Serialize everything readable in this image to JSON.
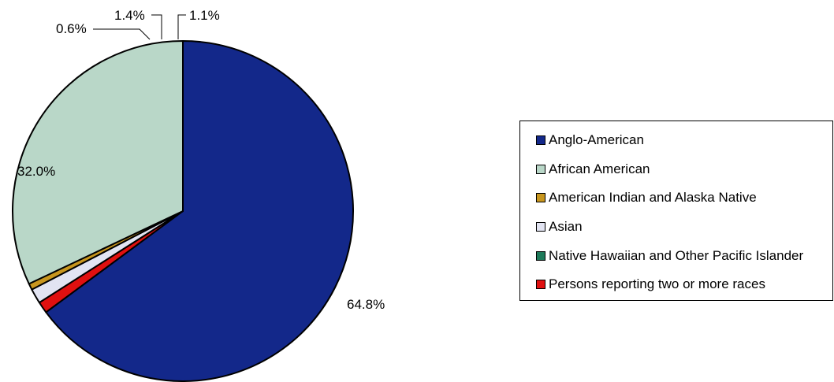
{
  "chart_data": {
    "type": "pie",
    "slices": [
      {
        "name": "Anglo-American",
        "value": 64.8,
        "label": "64.8%",
        "color": "#13288a"
      },
      {
        "name": "African American",
        "value": 32.0,
        "label": "32.0%",
        "color": "#b9d7c8"
      },
      {
        "name": "American Indian and Alaska Native",
        "value": 0.6,
        "label": "0.6%",
        "color": "#c8961e"
      },
      {
        "name": "Asian",
        "value": 1.4,
        "label": "1.4%",
        "color": "#e2e4f2"
      },
      {
        "name": "Native Hawaiian and Other Pacific Islander",
        "value": 0.0,
        "label": "",
        "color": "#1e7a5a"
      },
      {
        "name": "Persons reporting two or more races",
        "value": 1.1,
        "label": "1.1%",
        "color": "#e01010"
      }
    ],
    "start_angle": "12 o'clock",
    "direction": "clockwise",
    "legend_position": "right"
  }
}
